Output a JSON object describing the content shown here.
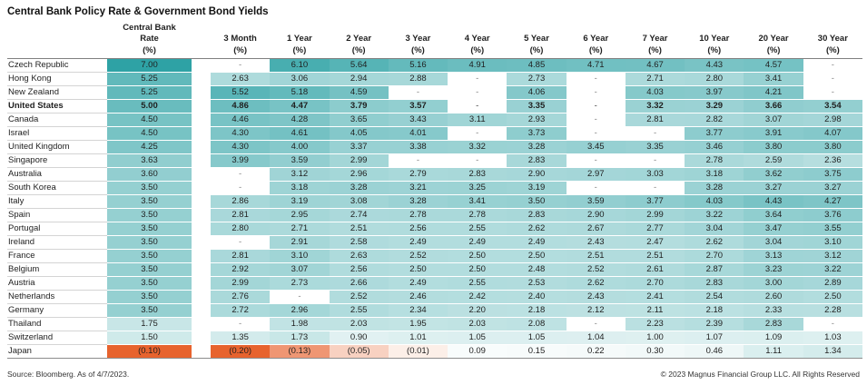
{
  "chart_data": {
    "type": "table",
    "title": "Central Bank Policy Rate & Government Bond Yields",
    "unit_label": "(%)",
    "columns": [
      "Central Bank Rate",
      "3 Month",
      "1 Year",
      "2 Year",
      "3 Year",
      "4 Year",
      "5 Year",
      "6 Year",
      "7 Year",
      "10 Year",
      "20 Year",
      "30 Year"
    ],
    "rows": [
      {
        "country": "Czech Republic",
        "bold": false,
        "values": [
          7.0,
          null,
          6.1,
          5.64,
          5.16,
          4.91,
          4.85,
          4.71,
          4.67,
          4.43,
          4.57,
          null
        ]
      },
      {
        "country": "Hong Kong",
        "bold": false,
        "values": [
          5.25,
          2.63,
          3.06,
          2.94,
          2.88,
          null,
          2.73,
          null,
          2.71,
          2.8,
          3.41,
          null
        ]
      },
      {
        "country": "New Zealand",
        "bold": false,
        "values": [
          5.25,
          5.52,
          5.18,
          4.59,
          null,
          null,
          4.06,
          null,
          4.03,
          3.97,
          4.21,
          null
        ]
      },
      {
        "country": "United States",
        "bold": true,
        "values": [
          5.0,
          4.86,
          4.47,
          3.79,
          3.57,
          null,
          3.35,
          null,
          3.32,
          3.29,
          3.66,
          3.54
        ]
      },
      {
        "country": "Canada",
        "bold": false,
        "values": [
          4.5,
          4.46,
          4.28,
          3.65,
          3.43,
          3.11,
          2.93,
          null,
          2.81,
          2.82,
          3.07,
          2.98
        ]
      },
      {
        "country": "Israel",
        "bold": false,
        "values": [
          4.5,
          4.3,
          4.61,
          4.05,
          4.01,
          null,
          3.73,
          null,
          null,
          3.77,
          3.91,
          4.07
        ]
      },
      {
        "country": "United Kingdom",
        "bold": false,
        "values": [
          4.25,
          4.3,
          4.0,
          3.37,
          3.38,
          3.32,
          3.28,
          3.45,
          3.35,
          3.46,
          3.8,
          3.8
        ]
      },
      {
        "country": "Singapore",
        "bold": false,
        "values": [
          3.63,
          3.99,
          3.59,
          2.99,
          null,
          null,
          2.83,
          null,
          null,
          2.78,
          2.59,
          2.36
        ]
      },
      {
        "country": "Australia",
        "bold": false,
        "values": [
          3.6,
          null,
          3.12,
          2.96,
          2.79,
          2.83,
          2.9,
          2.97,
          3.03,
          3.18,
          3.62,
          3.75
        ]
      },
      {
        "country": "South Korea",
        "bold": false,
        "values": [
          3.5,
          null,
          3.18,
          3.28,
          3.21,
          3.25,
          3.19,
          null,
          null,
          3.28,
          3.27,
          3.27
        ]
      },
      {
        "country": "Italy",
        "bold": false,
        "values": [
          3.5,
          2.86,
          3.19,
          3.08,
          3.28,
          3.41,
          3.5,
          3.59,
          3.77,
          4.03,
          4.43,
          4.27
        ]
      },
      {
        "country": "Spain",
        "bold": false,
        "values": [
          3.5,
          2.81,
          2.95,
          2.74,
          2.78,
          2.78,
          2.83,
          2.9,
          2.99,
          3.22,
          3.64,
          3.76
        ]
      },
      {
        "country": "Portugal",
        "bold": false,
        "values": [
          3.5,
          2.8,
          2.71,
          2.51,
          2.56,
          2.55,
          2.62,
          2.67,
          2.77,
          3.04,
          3.47,
          3.55
        ]
      },
      {
        "country": "Ireland",
        "bold": false,
        "values": [
          3.5,
          null,
          2.91,
          2.58,
          2.49,
          2.49,
          2.49,
          2.43,
          2.47,
          2.62,
          3.04,
          3.1
        ]
      },
      {
        "country": "France",
        "bold": false,
        "values": [
          3.5,
          2.81,
          3.1,
          2.63,
          2.52,
          2.5,
          2.5,
          2.51,
          2.51,
          2.7,
          3.13,
          3.12
        ]
      },
      {
        "country": "Belgium",
        "bold": false,
        "values": [
          3.5,
          2.92,
          3.07,
          2.56,
          2.5,
          2.5,
          2.48,
          2.52,
          2.61,
          2.87,
          3.23,
          3.22
        ]
      },
      {
        "country": "Austria",
        "bold": false,
        "values": [
          3.5,
          2.99,
          2.73,
          2.66,
          2.49,
          2.55,
          2.53,
          2.62,
          2.7,
          2.83,
          3.0,
          2.89
        ]
      },
      {
        "country": "Netherlands",
        "bold": false,
        "values": [
          3.5,
          2.76,
          null,
          2.52,
          2.46,
          2.42,
          2.4,
          2.43,
          2.41,
          2.54,
          2.6,
          2.5
        ]
      },
      {
        "country": "Germany",
        "bold": false,
        "values": [
          3.5,
          2.72,
          2.96,
          2.55,
          2.34,
          2.2,
          2.18,
          2.12,
          2.11,
          2.18,
          2.33,
          2.28
        ]
      },
      {
        "country": "Thailand",
        "bold": false,
        "values": [
          1.75,
          null,
          1.98,
          2.03,
          1.95,
          2.03,
          2.08,
          null,
          2.23,
          2.39,
          2.83,
          null
        ]
      },
      {
        "country": "Switzerland",
        "bold": false,
        "values": [
          1.5,
          1.35,
          1.73,
          0.9,
          1.01,
          1.05,
          1.05,
          1.04,
          1.0,
          1.07,
          1.09,
          1.03
        ]
      },
      {
        "country": "Japan",
        "bold": false,
        "values": [
          -0.1,
          -0.2,
          -0.13,
          -0.05,
          -0.01,
          0.09,
          0.15,
          0.22,
          0.3,
          0.46,
          1.11,
          1.34
        ]
      }
    ],
    "missing_value_symbol": "-"
  },
  "colors": {
    "teal_max": "#2ea2a5",
    "teal_min": "#fbfdfd",
    "orange_max": "#e7632e",
    "orange_min": "#fdf6f2",
    "header_line": "#7f7f7f",
    "row_line": "#d4d4d4",
    "dash_text": "#7f7f7f",
    "text": "#1f1f1f"
  },
  "heatmap_scale": {
    "pos_domain_max": 7.0,
    "neg_domain_yield": 0.2,
    "neg_domain_cbr": 0.1
  },
  "footer": {
    "source": "Source: Bloomberg. As of 4/7/2023.",
    "copyright": "© 2023 Magnus Financial Group LLC. All Rights Reserved"
  }
}
